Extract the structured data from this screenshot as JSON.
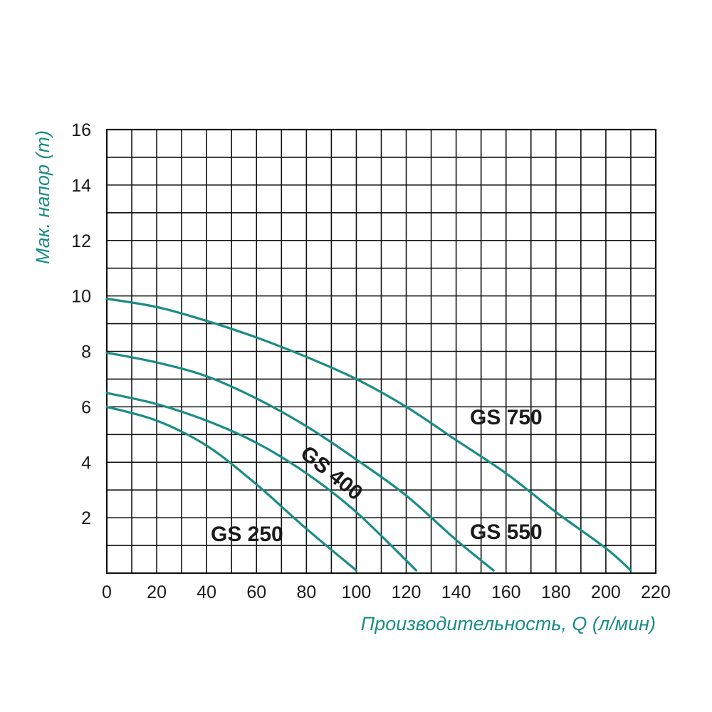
{
  "chart_data": {
    "type": "line",
    "xlabel": "Производительность, Q (л/мин)",
    "ylabel": "Мак. напор (m)",
    "xlim": [
      0,
      220
    ],
    "ylim": [
      0,
      16
    ],
    "x_ticks": [
      "0",
      "20",
      "40",
      "60",
      "80",
      "100",
      "120",
      "140",
      "160",
      "180",
      "200",
      "220"
    ],
    "y_ticks": [
      "2",
      "4",
      "6",
      "8",
      "10",
      "12",
      "14",
      "16"
    ],
    "grid": true,
    "curve_color": "#1b8c86",
    "series": [
      {
        "name": "GS 250",
        "x": [
          0,
          20,
          40,
          60,
          80,
          100
        ],
        "y": [
          6.0,
          5.5,
          4.6,
          3.2,
          1.6,
          0.1
        ]
      },
      {
        "name": "GS 400",
        "x": [
          0,
          20,
          40,
          60,
          80,
          100,
          124
        ],
        "y": [
          6.5,
          6.1,
          5.5,
          4.7,
          3.6,
          2.2,
          0.1
        ]
      },
      {
        "name": "GS 550",
        "x": [
          0,
          20,
          40,
          60,
          80,
          100,
          120,
          140,
          155
        ],
        "y": [
          7.95,
          7.6,
          7.1,
          6.3,
          5.3,
          4.1,
          2.8,
          1.2,
          0.1
        ]
      },
      {
        "name": "GS 750",
        "x": [
          0,
          20,
          40,
          60,
          80,
          100,
          120,
          140,
          160,
          180,
          200,
          210
        ],
        "y": [
          9.9,
          9.6,
          9.1,
          8.5,
          7.8,
          7.0,
          6.0,
          4.8,
          3.6,
          2.2,
          0.9,
          0.1
        ]
      }
    ]
  }
}
